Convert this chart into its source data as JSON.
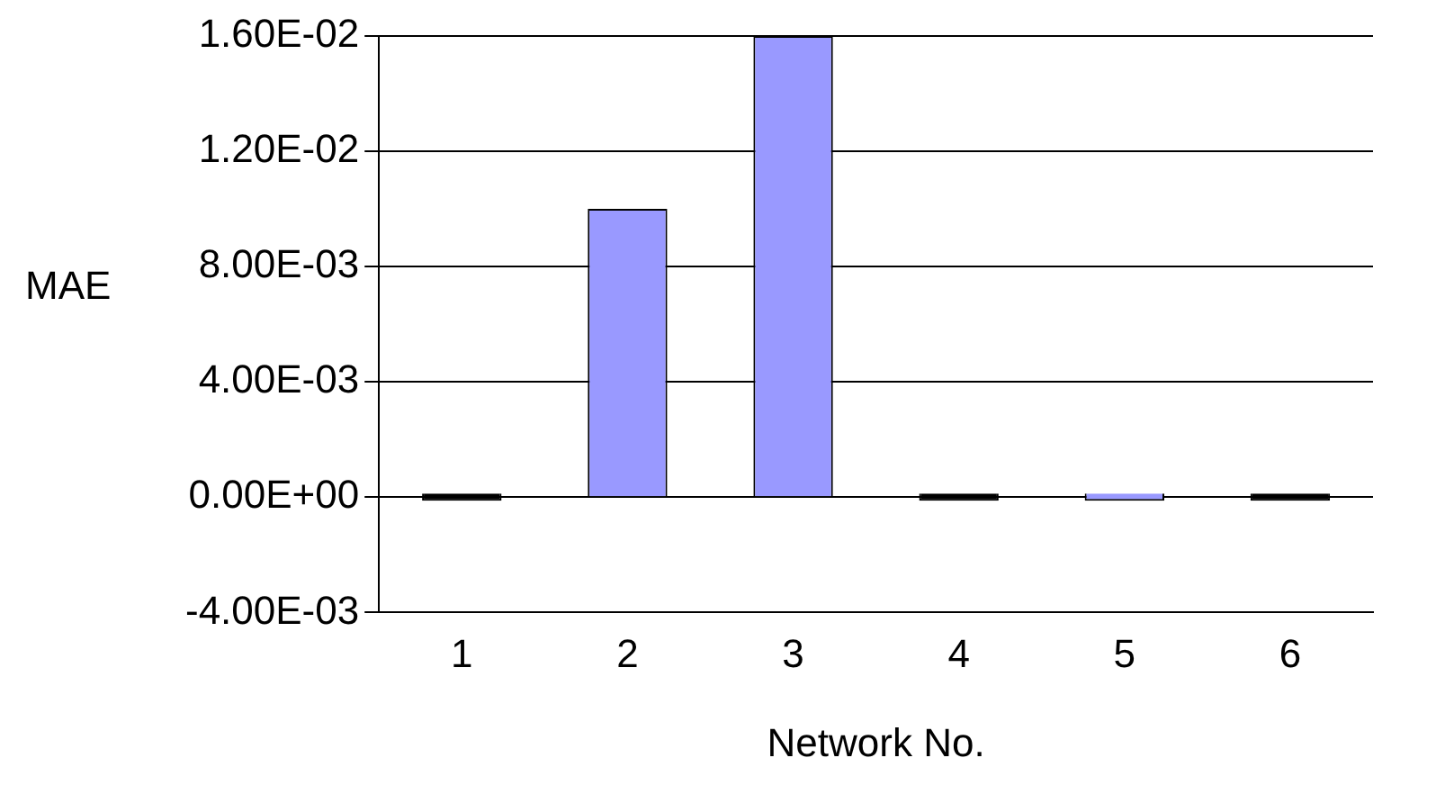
{
  "chart_data": {
    "type": "bar",
    "xlabel": "Network No.",
    "ylabel": "MAE",
    "categories": [
      "1",
      "2",
      "3",
      "4",
      "5",
      "6"
    ],
    "values": [
      0,
      0.01,
      0.016,
      0,
      0,
      0
    ],
    "colors": [
      "#000000",
      "#9999ff",
      "#9999ff",
      "#000000",
      "#9999ff",
      "#000000"
    ],
    "ylim": [
      -0.004,
      0.016
    ],
    "yticks": [
      {
        "value": -0.004,
        "label": "-4.00E-03"
      },
      {
        "value": 0,
        "label": "0.00E+00"
      },
      {
        "value": 0.004,
        "label": "4.00E-03"
      },
      {
        "value": 0.008,
        "label": "8.00E-03"
      },
      {
        "value": 0.012,
        "label": "1.20E-02"
      },
      {
        "value": 0.016,
        "label": "1.60E-02"
      }
    ],
    "grid": "y",
    "legend": false
  }
}
